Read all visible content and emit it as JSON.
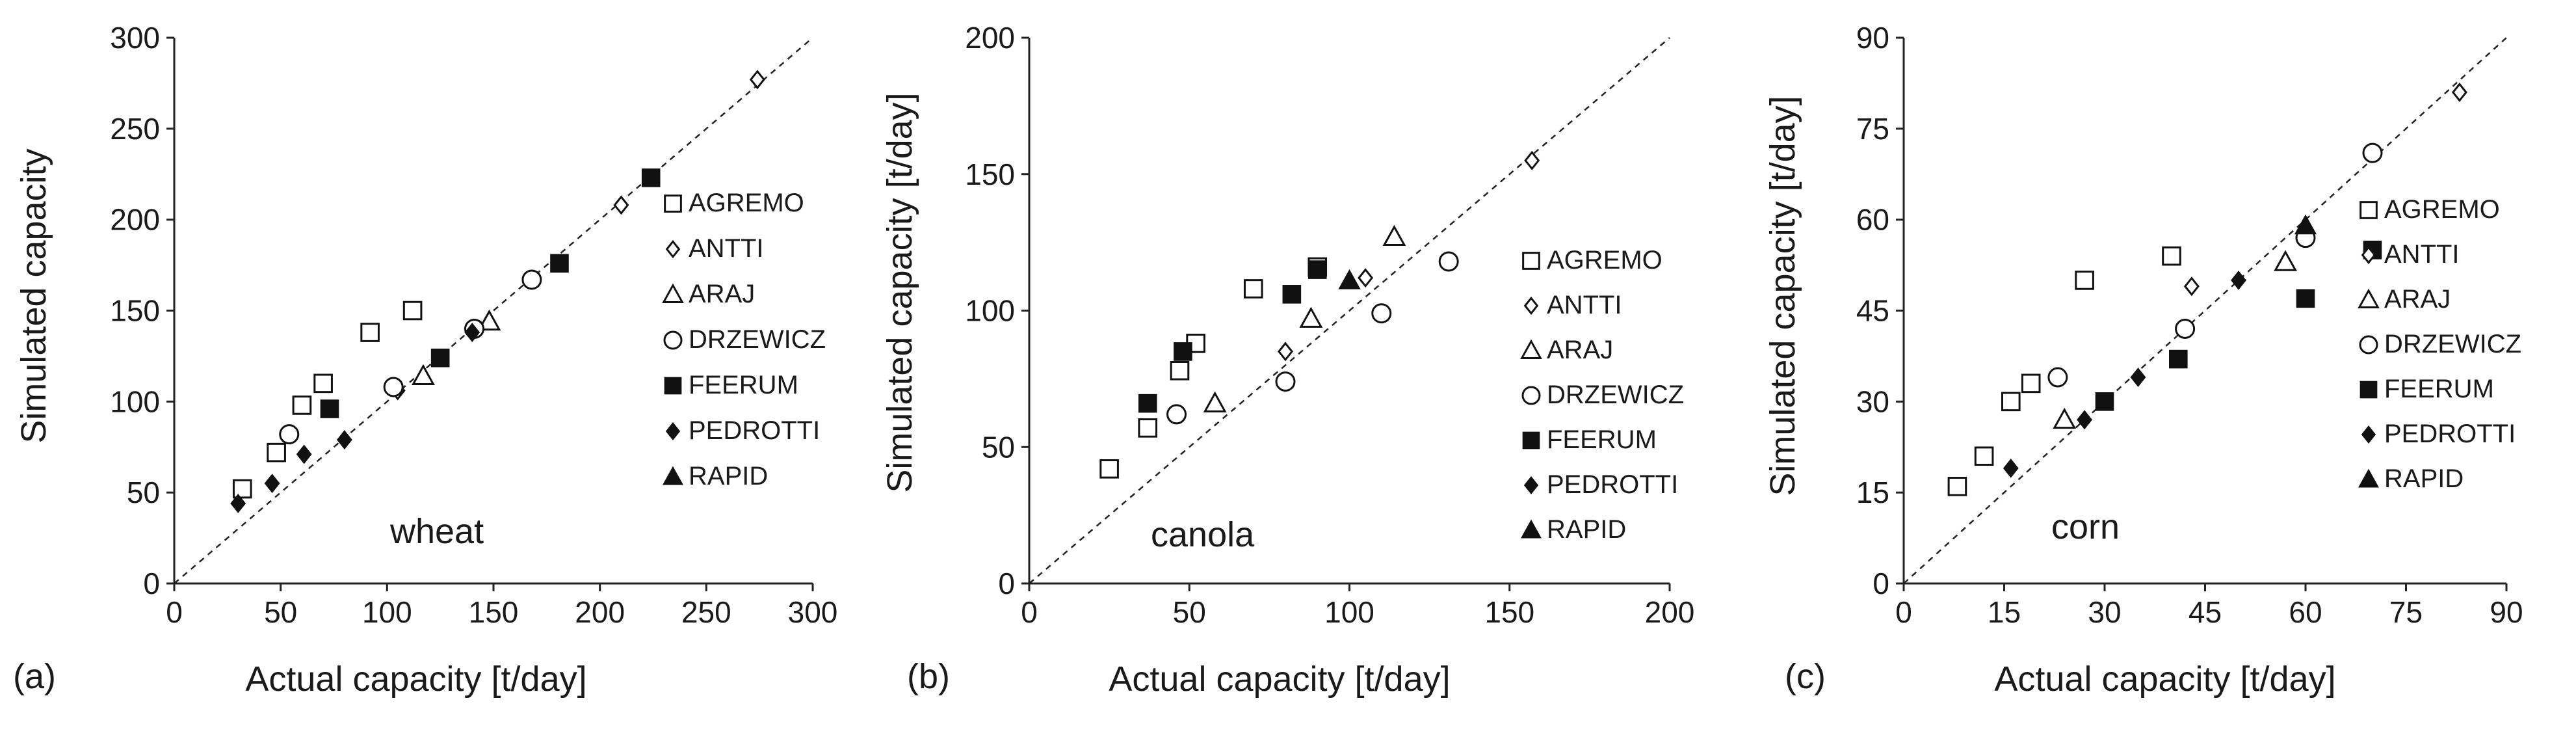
{
  "colors": {
    "axis": "#222222",
    "marker": "#111111",
    "background": "#ffffff"
  },
  "legend_entries": [
    {
      "name": "AGREMO",
      "marker": "square-open"
    },
    {
      "name": "ANTTI",
      "marker": "diamond-open"
    },
    {
      "name": "ARAJ",
      "marker": "triangle-open"
    },
    {
      "name": "DRZEWICZ",
      "marker": "circle-open"
    },
    {
      "name": "FEERUM",
      "marker": "square-filled"
    },
    {
      "name": "PEDROTTI",
      "marker": "diamond-filled"
    },
    {
      "name": "RAPID",
      "marker": "triangle-filled"
    }
  ],
  "chart_data": [
    {
      "type": "scatter",
      "panel": "(a)",
      "crop": "wheat",
      "xlabel": "Actual capacity [t/day]",
      "ylabel": "Simulated capacity",
      "xlim": [
        0,
        300
      ],
      "ylim": [
        0,
        300
      ],
      "xticks": [
        0,
        50,
        100,
        150,
        200,
        250,
        300
      ],
      "yticks": [
        0,
        50,
        100,
        150,
        200,
        250,
        300
      ],
      "reference_line": "y = x",
      "series": [
        {
          "name": "AGREMO",
          "points": [
            [
              32,
              52
            ],
            [
              48,
              72
            ],
            [
              60,
              98
            ],
            [
              70,
              110
            ],
            [
              92,
              138
            ],
            [
              112,
              150
            ]
          ]
        },
        {
          "name": "ANTTI",
          "points": [
            [
              105,
              106
            ],
            [
              210,
              208
            ],
            [
              274,
              277
            ]
          ]
        },
        {
          "name": "ARAJ",
          "points": [
            [
              117,
              114
            ],
            [
              148,
              144
            ]
          ]
        },
        {
          "name": "DRZEWICZ",
          "points": [
            [
              54,
              82
            ],
            [
              103,
              108
            ],
            [
              141,
              140
            ],
            [
              168,
              167
            ]
          ]
        },
        {
          "name": "FEERUM",
          "points": [
            [
              73,
              96
            ],
            [
              125,
              124
            ],
            [
              181,
              176
            ],
            [
              224,
              223
            ]
          ]
        },
        {
          "name": "PEDROTTI",
          "points": [
            [
              30,
              44
            ],
            [
              46,
              55
            ],
            [
              61,
              71
            ],
            [
              80,
              79
            ],
            [
              140,
              138
            ]
          ]
        },
        {
          "name": "RAPID",
          "points": []
        }
      ]
    },
    {
      "type": "scatter",
      "panel": "(b)",
      "crop": "canola",
      "xlabel": "Actual capacity [t/day]",
      "ylabel": "Simulated capacity [t/day]",
      "xlim": [
        0,
        200
      ],
      "ylim": [
        0,
        200
      ],
      "xticks": [
        0,
        50,
        100,
        150,
        200
      ],
      "yticks": [
        0,
        50,
        100,
        150,
        200
      ],
      "reference_line": "y = x",
      "series": [
        {
          "name": "AGREMO",
          "points": [
            [
              25,
              42
            ],
            [
              37,
              57
            ],
            [
              47,
              78
            ],
            [
              52,
              88
            ],
            [
              70,
              108
            ],
            [
              90,
              116
            ]
          ]
        },
        {
          "name": "ANTTI",
          "points": [
            [
              80,
              85
            ],
            [
              105,
              112
            ],
            [
              157,
              155
            ]
          ]
        },
        {
          "name": "ARAJ",
          "points": [
            [
              58,
              66
            ],
            [
              88,
              97
            ],
            [
              114,
              127
            ]
          ]
        },
        {
          "name": "DRZEWICZ",
          "points": [
            [
              46,
              62
            ],
            [
              80,
              74
            ],
            [
              110,
              99
            ],
            [
              131,
              118
            ]
          ]
        },
        {
          "name": "FEERUM",
          "points": [
            [
              37,
              66
            ],
            [
              48,
              85
            ],
            [
              82,
              106
            ],
            [
              90,
              115
            ]
          ]
        },
        {
          "name": "PEDROTTI",
          "points": []
        },
        {
          "name": "RAPID",
          "points": [
            [
              100,
              111
            ]
          ]
        }
      ]
    },
    {
      "type": "scatter",
      "panel": "(c)",
      "crop": "corn",
      "xlabel": "Actual capacity [t/day]",
      "ylabel": "Simulated capacity [t/day]",
      "xlim": [
        0,
        90
      ],
      "ylim": [
        0,
        90
      ],
      "xticks": [
        0,
        15,
        30,
        45,
        60,
        75,
        90
      ],
      "yticks": [
        0,
        15,
        30,
        45,
        60,
        75,
        90
      ],
      "reference_line": "y = x",
      "series": [
        {
          "name": "AGREMO",
          "points": [
            [
              8,
              16
            ],
            [
              12,
              21
            ],
            [
              16,
              30
            ],
            [
              19,
              33
            ],
            [
              27,
              50
            ],
            [
              40,
              54
            ]
          ]
        },
        {
          "name": "ANTTI",
          "points": [
            [
              43,
              49
            ],
            [
              83,
              81
            ]
          ]
        },
        {
          "name": "ARAJ",
          "points": [
            [
              24,
              27
            ],
            [
              57,
              53
            ]
          ]
        },
        {
          "name": "DRZEWICZ",
          "points": [
            [
              23,
              34
            ],
            [
              42,
              42
            ],
            [
              60,
              57
            ],
            [
              70,
              71
            ]
          ]
        },
        {
          "name": "FEERUM",
          "points": [
            [
              30,
              30
            ],
            [
              41,
              37
            ],
            [
              60,
              47
            ],
            [
              70,
              55
            ]
          ]
        },
        {
          "name": "PEDROTTI",
          "points": [
            [
              16,
              19
            ],
            [
              27,
              27
            ],
            [
              35,
              34
            ],
            [
              50,
              50
            ]
          ]
        },
        {
          "name": "RAPID",
          "points": [
            [
              60,
              59
            ]
          ]
        }
      ]
    }
  ]
}
